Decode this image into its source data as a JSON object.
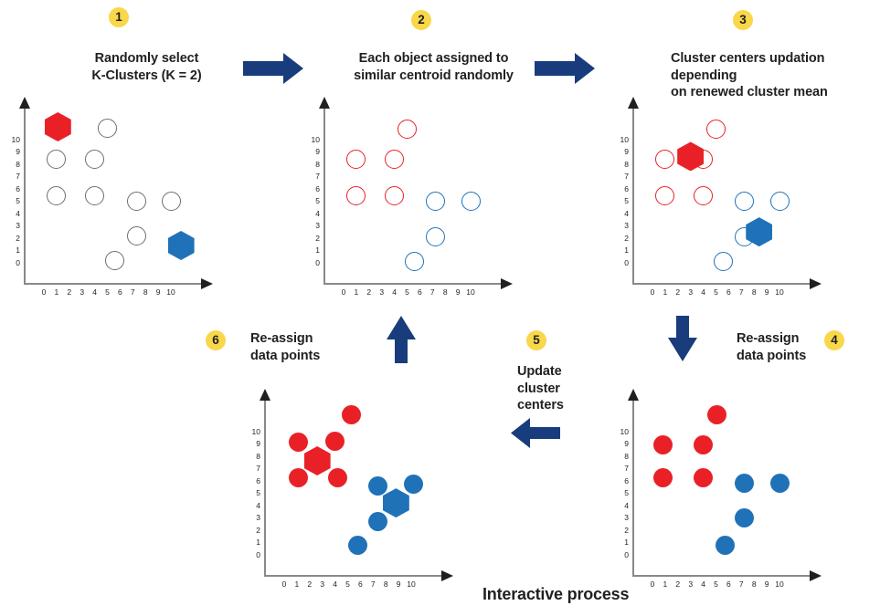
{
  "figure": {
    "caption": "Interactive process"
  },
  "colors": {
    "red": "#e92127",
    "blue": "#1f72b8",
    "gray": "#6d6e71",
    "navy": "#193c7d",
    "yellow": "#f8d74a",
    "text": "#231f20",
    "axis": "#87898c"
  },
  "steps": [
    {
      "number": "1",
      "lines": [
        "Randomly select",
        "K-Clusters (K = 2)"
      ]
    },
    {
      "number": "2",
      "lines": [
        "Each object assigned to",
        "similar centroid randomly"
      ]
    },
    {
      "number": "3",
      "lines": [
        "Cluster centers updation depending",
        "on renewed cluster mean"
      ]
    },
    {
      "number": "4",
      "lines": [
        "Re-assign",
        "data points"
      ]
    },
    {
      "number": "5",
      "lines": [
        "Update",
        "cluster",
        "centers"
      ]
    },
    {
      "number": "6",
      "lines": [
        "Re-assign",
        "data points"
      ]
    }
  ],
  "axes": {
    "x_ticks": [
      "0",
      "1",
      "2",
      "3",
      "4",
      "5",
      "6",
      "7",
      "8",
      "9",
      "10"
    ],
    "y_ticks": [
      "10",
      "9",
      "8",
      "7",
      "6",
      "5",
      "4",
      "3",
      "2",
      "1",
      "0"
    ]
  },
  "plots": [
    {
      "id": "plot-step-1",
      "points": [
        {
          "x": 5,
          "y": 10.9,
          "shape": "circle",
          "style": "open",
          "color": "gray"
        },
        {
          "x": 1,
          "y": 8.4,
          "shape": "circle",
          "style": "open",
          "color": "gray"
        },
        {
          "x": 4,
          "y": 8.4,
          "shape": "circle",
          "style": "open",
          "color": "gray"
        },
        {
          "x": 1,
          "y": 5.4,
          "shape": "circle",
          "style": "open",
          "color": "gray"
        },
        {
          "x": 4,
          "y": 5.4,
          "shape": "circle",
          "style": "open",
          "color": "gray"
        },
        {
          "x": 7.3,
          "y": 5,
          "shape": "circle",
          "style": "open",
          "color": "gray"
        },
        {
          "x": 10,
          "y": 5,
          "shape": "circle",
          "style": "open",
          "color": "gray"
        },
        {
          "x": 7.3,
          "y": 2.2,
          "shape": "circle",
          "style": "open",
          "color": "gray"
        },
        {
          "x": 5.6,
          "y": 0.2,
          "shape": "circle",
          "style": "open",
          "color": "gray"
        },
        {
          "x": 1.1,
          "y": 11,
          "shape": "hexagon",
          "style": "filled",
          "color": "red"
        },
        {
          "x": 10.8,
          "y": 1.4,
          "shape": "hexagon",
          "style": "filled",
          "color": "blue"
        }
      ]
    },
    {
      "id": "plot-step-2",
      "points": [
        {
          "x": 5,
          "y": 10.8,
          "shape": "circle",
          "style": "open",
          "color": "red"
        },
        {
          "x": 1,
          "y": 8.4,
          "shape": "circle",
          "style": "open",
          "color": "red"
        },
        {
          "x": 4,
          "y": 8.4,
          "shape": "circle",
          "style": "open",
          "color": "red"
        },
        {
          "x": 1,
          "y": 5.4,
          "shape": "circle",
          "style": "open",
          "color": "red"
        },
        {
          "x": 4,
          "y": 5.4,
          "shape": "circle",
          "style": "open",
          "color": "red"
        },
        {
          "x": 7.2,
          "y": 5,
          "shape": "circle",
          "style": "open",
          "color": "blue"
        },
        {
          "x": 10,
          "y": 5,
          "shape": "circle",
          "style": "open",
          "color": "blue"
        },
        {
          "x": 7.2,
          "y": 2.1,
          "shape": "circle",
          "style": "open",
          "color": "blue"
        },
        {
          "x": 5.6,
          "y": 0.1,
          "shape": "circle",
          "style": "open",
          "color": "blue"
        }
      ]
    },
    {
      "id": "plot-step-3",
      "points": [
        {
          "x": 5,
          "y": 10.8,
          "shape": "circle",
          "style": "open",
          "color": "red"
        },
        {
          "x": 1,
          "y": 8.4,
          "shape": "circle",
          "style": "open",
          "color": "red"
        },
        {
          "x": 4,
          "y": 8.4,
          "shape": "circle",
          "style": "open",
          "color": "red"
        },
        {
          "x": 1,
          "y": 5.4,
          "shape": "circle",
          "style": "open",
          "color": "red"
        },
        {
          "x": 4,
          "y": 5.4,
          "shape": "circle",
          "style": "open",
          "color": "red"
        },
        {
          "x": 7.2,
          "y": 5,
          "shape": "circle",
          "style": "open",
          "color": "blue"
        },
        {
          "x": 10,
          "y": 5,
          "shape": "circle",
          "style": "open",
          "color": "blue"
        },
        {
          "x": 7.2,
          "y": 2.1,
          "shape": "circle",
          "style": "open",
          "color": "blue"
        },
        {
          "x": 5.6,
          "y": 0.1,
          "shape": "circle",
          "style": "open",
          "color": "blue"
        },
        {
          "x": 3,
          "y": 8.6,
          "shape": "hexagon",
          "style": "filled",
          "color": "red"
        },
        {
          "x": 8.4,
          "y": 2.5,
          "shape": "hexagon",
          "style": "filled",
          "color": "blue"
        }
      ]
    },
    {
      "id": "plot-step-4",
      "points": [
        {
          "x": 5.1,
          "y": 11.3,
          "shape": "circle",
          "style": "filled",
          "color": "red"
        },
        {
          "x": 0.8,
          "y": 8.9,
          "shape": "circle",
          "style": "filled",
          "color": "red"
        },
        {
          "x": 4,
          "y": 8.9,
          "shape": "circle",
          "style": "filled",
          "color": "red"
        },
        {
          "x": 0.8,
          "y": 6.2,
          "shape": "circle",
          "style": "filled",
          "color": "red"
        },
        {
          "x": 4,
          "y": 6.2,
          "shape": "circle",
          "style": "filled",
          "color": "red"
        },
        {
          "x": 7.2,
          "y": 5.8,
          "shape": "circle",
          "style": "filled",
          "color": "blue"
        },
        {
          "x": 10,
          "y": 5.8,
          "shape": "circle",
          "style": "filled",
          "color": "blue"
        },
        {
          "x": 7.2,
          "y": 3,
          "shape": "circle",
          "style": "filled",
          "color": "blue"
        },
        {
          "x": 5.7,
          "y": 0.8,
          "shape": "circle",
          "style": "filled",
          "color": "blue"
        }
      ]
    },
    {
      "id": "plot-step-6",
      "points": [
        {
          "x": 2.6,
          "y": 7.6,
          "shape": "hexagon",
          "style": "filled",
          "color": "red"
        },
        {
          "x": 8.8,
          "y": 4.2,
          "shape": "hexagon",
          "style": "filled",
          "color": "blue"
        },
        {
          "x": 5.3,
          "y": 11.3,
          "shape": "circle",
          "style": "filled",
          "color": "red"
        },
        {
          "x": 1.1,
          "y": 9.1,
          "shape": "circle",
          "style": "filled",
          "color": "red"
        },
        {
          "x": 4,
          "y": 9.2,
          "shape": "circle",
          "style": "filled",
          "color": "red"
        },
        {
          "x": 1.1,
          "y": 6.2,
          "shape": "circle",
          "style": "filled",
          "color": "red"
        },
        {
          "x": 4.2,
          "y": 6.2,
          "shape": "circle",
          "style": "filled",
          "color": "red"
        },
        {
          "x": 7.4,
          "y": 5.6,
          "shape": "circle",
          "style": "filled",
          "color": "blue"
        },
        {
          "x": 10.2,
          "y": 5.7,
          "shape": "circle",
          "style": "filled",
          "color": "blue"
        },
        {
          "x": 7.4,
          "y": 2.7,
          "shape": "circle",
          "style": "filled",
          "color": "blue"
        },
        {
          "x": 5.8,
          "y": 0.8,
          "shape": "circle",
          "style": "filled",
          "color": "blue"
        }
      ]
    }
  ]
}
